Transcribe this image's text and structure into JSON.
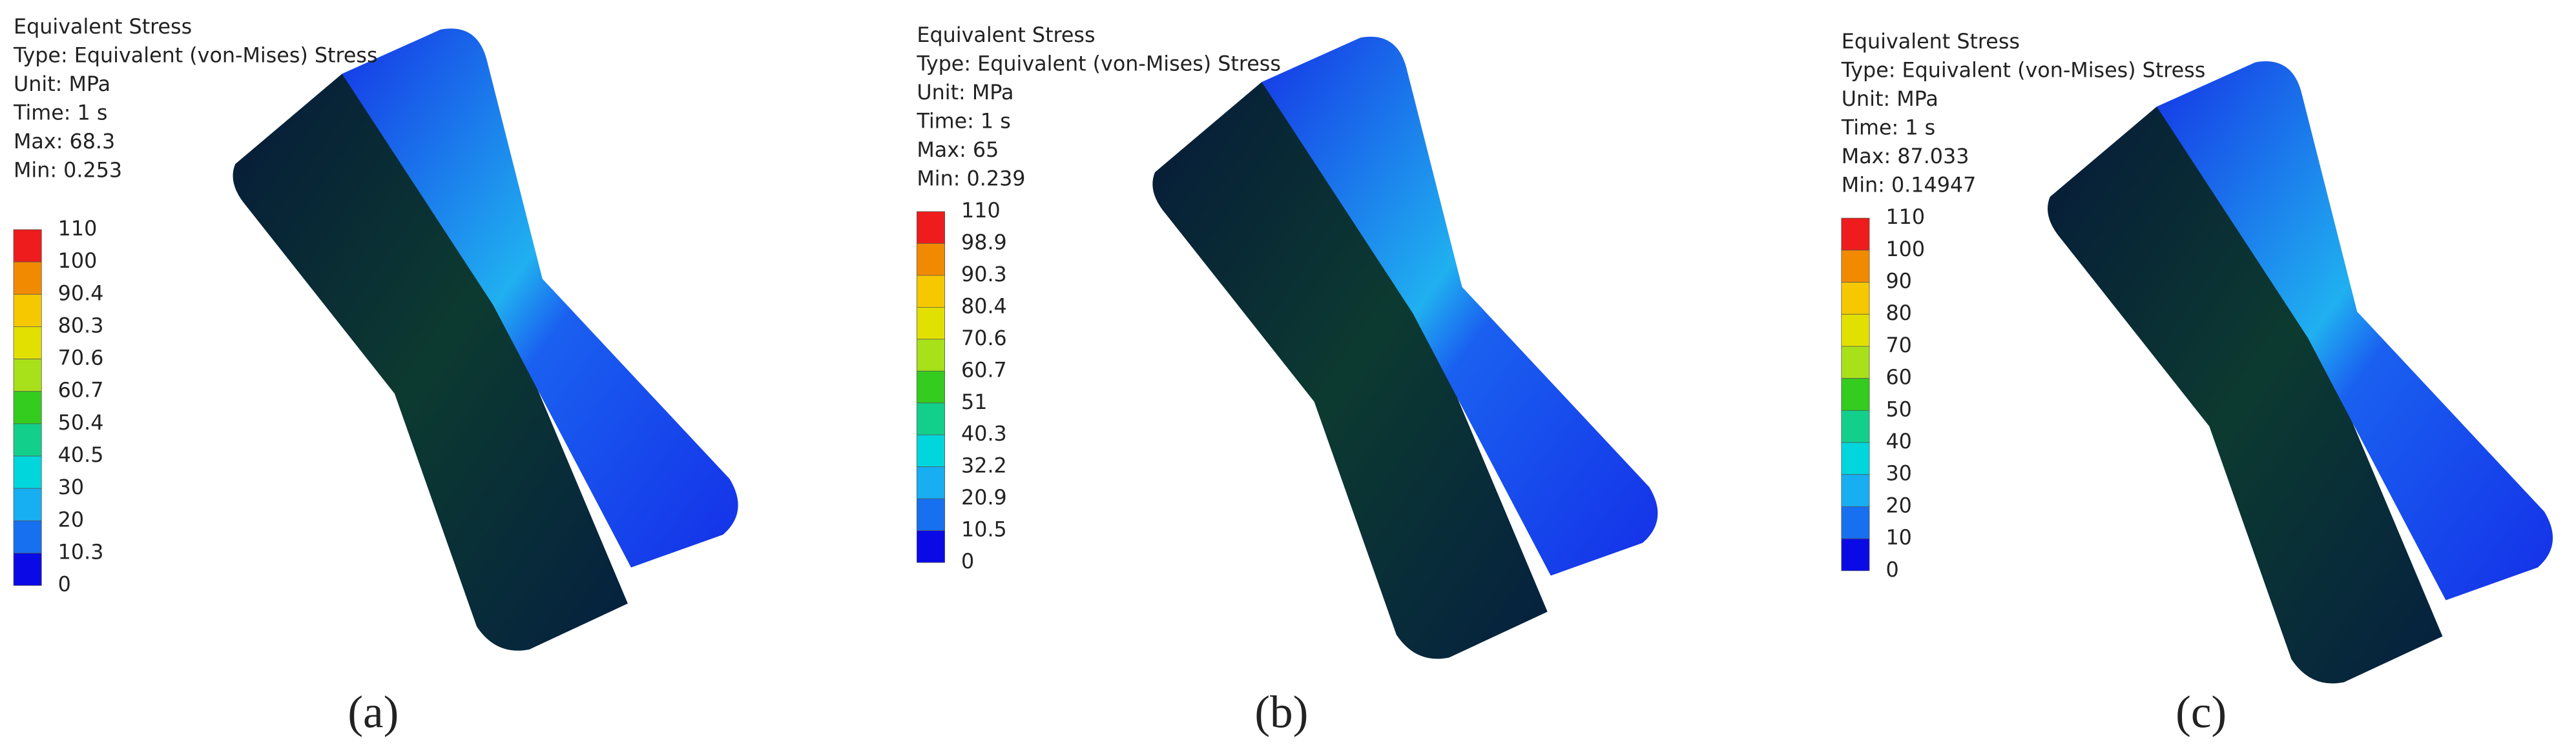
{
  "panels": [
    {
      "header": [
        "Equivalent Stress",
        "Type: Equivalent (von-Mises) Stress",
        "Unit: MPa",
        "Time: 1 s",
        "Max: 68.3",
        "Min: 0.253"
      ],
      "legend": [
        110,
        100,
        90.4,
        80.3,
        70.6,
        60.7,
        50.4,
        40.5,
        30,
        20,
        10.3,
        0
      ],
      "caption": "(a)"
    },
    {
      "header": [
        "Equivalent Stress",
        "Type: Equivalent (von-Mises) Stress",
        "Unit: MPa",
        "Time: 1 s",
        "Max: 65",
        "Min: 0.239"
      ],
      "legend": [
        110,
        98.9,
        90.3,
        80.4,
        70.6,
        60.7,
        51,
        40.3,
        32.2,
        20.9,
        10.5,
        0
      ],
      "caption": "(b)"
    },
    {
      "header": [
        "Equivalent Stress",
        "Type: Equivalent (von-Mises) Stress",
        "Unit: MPa",
        "Time: 1 s",
        "Max: 87.033",
        "Min: 0.14947"
      ],
      "legend": [
        110,
        100,
        90,
        80,
        70,
        60,
        50,
        40,
        30,
        20,
        10,
        0
      ],
      "caption": "(c)"
    }
  ],
  "legend_colors": [
    "#ee1c1c",
    "#f28a00",
    "#f5c800",
    "#e2e000",
    "#a8e01a",
    "#34cc1e",
    "#12d08c",
    "#00d6dc",
    "#18aef2",
    "#1670f0",
    "#0a0ae6"
  ]
}
